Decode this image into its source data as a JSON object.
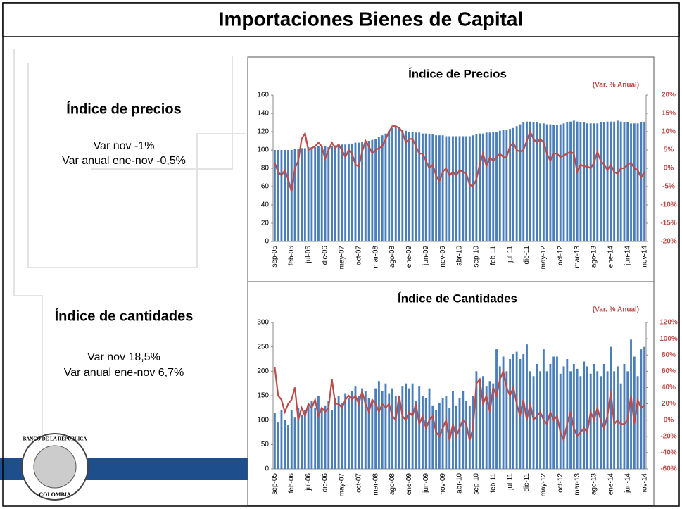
{
  "header": {
    "title": "Importaciones Bienes de Capital"
  },
  "sections": [
    {
      "heading": "Índice de precios",
      "lines": [
        "Var nov -1%",
        "Var anual ene-nov -0,5%"
      ]
    },
    {
      "heading": "Índice de cantidades",
      "lines": [
        "Var nov 18,5%",
        "Var anual ene-nov 6,7%"
      ]
    }
  ],
  "logo": {
    "top": "BANCO DE LA REPÚBLICA",
    "bottom": "COLOMBIA"
  },
  "chart_data": [
    {
      "type": "bar_line",
      "title": "Índice de Precios",
      "annotation": "(Var. % Anual)",
      "categories": [
        "sep-05",
        null,
        null,
        null,
        null,
        "feb-06",
        null,
        null,
        null,
        null,
        "jul-06",
        null,
        null,
        null,
        null,
        "dic-06",
        null,
        null,
        null,
        null,
        "may-07",
        null,
        null,
        null,
        null,
        "oct-07",
        null,
        null,
        null,
        null,
        "mar-08",
        null,
        null,
        null,
        null,
        "ago-08",
        null,
        null,
        null,
        null,
        "ene-09",
        null,
        null,
        null,
        null,
        "jun-09",
        null,
        null,
        null,
        null,
        "nov-09",
        null,
        null,
        null,
        null,
        "abr-10",
        null,
        null,
        null,
        null,
        "sep-10",
        null,
        null,
        null,
        null,
        "feb-11",
        null,
        null,
        null,
        null,
        "jul-11",
        null,
        null,
        null,
        null,
        "dic-11",
        null,
        null,
        null,
        null,
        "may-12",
        null,
        null,
        null,
        null,
        "oct-12",
        null,
        null,
        null,
        null,
        "mar-13",
        null,
        null,
        null,
        null,
        "ago-13",
        null,
        null,
        null,
        null,
        "ene-14",
        null,
        null,
        null,
        null,
        "jun-14",
        null,
        null,
        null,
        null,
        "nov-14"
      ],
      "series": [
        {
          "color": "#4a7ebb",
          "values": [
            100,
            100,
            100,
            100,
            100,
            100,
            101,
            101,
            102,
            102,
            103,
            103,
            103,
            104,
            104,
            104,
            103,
            104,
            105,
            105,
            106,
            106,
            107,
            107,
            108,
            108,
            109,
            110,
            110,
            111,
            112,
            114,
            116,
            118,
            121,
            124,
            125,
            124,
            122,
            121,
            120,
            120,
            119,
            119,
            118,
            118,
            117,
            117,
            116,
            116,
            116,
            115,
            115,
            115,
            115,
            115,
            115,
            115,
            115,
            116,
            117,
            118,
            118,
            119,
            119,
            120,
            120,
            121,
            122,
            122,
            123,
            124,
            126,
            128,
            130,
            131,
            131,
            130,
            130,
            129,
            129,
            128,
            128,
            127,
            127,
            128,
            129,
            130,
            131,
            132,
            131,
            130,
            130,
            129,
            129,
            129,
            129,
            130,
            130,
            131,
            131,
            131,
            132,
            131,
            130,
            130,
            129,
            129,
            129,
            130,
            130
          ]
        },
        {
          "color": "#be4b48",
          "axis": "y2",
          "values": [
            1.5,
            -1,
            -2,
            -0.5,
            -3,
            -6.5,
            0,
            2,
            8,
            9.5,
            5,
            5.5,
            6,
            7,
            6,
            2.5,
            5,
            7,
            5.5,
            6.5,
            5,
            3,
            5,
            4,
            1,
            0.5,
            4.5,
            7.5,
            6,
            4,
            5,
            5.5,
            6,
            8,
            10,
            11.5,
            11.5,
            11,
            10,
            7,
            8,
            8,
            6,
            4,
            4,
            2,
            0,
            1,
            -2,
            -3.5,
            -1,
            0,
            -2,
            -1,
            -2,
            -0.5,
            -1,
            -1.5,
            -4.5,
            -5,
            -3,
            1,
            4,
            0.5,
            3,
            2,
            3,
            4,
            3,
            3,
            6,
            7,
            5,
            4.5,
            5,
            7.5,
            10,
            8,
            7,
            8,
            7,
            4,
            2,
            4,
            4,
            3,
            3.5,
            4,
            4.5,
            4,
            -1,
            1,
            0.5,
            0.5,
            0,
            1.5,
            4.5,
            2,
            1,
            -0.5,
            1,
            -1,
            -1.5,
            0,
            0,
            1,
            1.5,
            0,
            -0.5,
            -2.5,
            -1
          ]
        }
      ],
      "ylim": [
        0,
        160
      ],
      "yticks": [
        0,
        20,
        40,
        60,
        80,
        100,
        120,
        140,
        160
      ],
      "y2lim": [
        -20,
        20
      ],
      "y2ticks": [
        {
          "value": -20,
          "label": "-20%"
        },
        {
          "value": -15,
          "label": "-15%"
        },
        {
          "value": -10,
          "label": "-10%"
        },
        {
          "value": -5,
          "label": "-5%"
        },
        {
          "value": 0,
          "label": "0%"
        },
        {
          "value": 5,
          "label": "5%"
        },
        {
          "value": 10,
          "label": "10%"
        },
        {
          "value": 15,
          "label": "15%"
        },
        {
          "value": 20,
          "label": "20%"
        }
      ]
    },
    {
      "type": "bar_line",
      "title": "Índice de Cantidades",
      "annotation": "(Var. % Anual)",
      "categories": [
        "sep-05",
        null,
        null,
        null,
        null,
        "feb-06",
        null,
        null,
        null,
        null,
        "jul-06",
        null,
        null,
        null,
        null,
        "dic-06",
        null,
        null,
        null,
        null,
        "may-07",
        null,
        null,
        null,
        null,
        "oct-07",
        null,
        null,
        null,
        null,
        "mar-08",
        null,
        null,
        null,
        null,
        "ago-08",
        null,
        null,
        null,
        null,
        "ene-09",
        null,
        null,
        null,
        null,
        "jun-09",
        null,
        null,
        null,
        null,
        "nov-09",
        null,
        null,
        null,
        null,
        "abr-10",
        null,
        null,
        null,
        null,
        "sep-10",
        null,
        null,
        null,
        null,
        "feb-11",
        null,
        null,
        null,
        null,
        "jul-11",
        null,
        null,
        null,
        null,
        "dic-11",
        null,
        null,
        null,
        null,
        "may-12",
        null,
        null,
        null,
        null,
        "oct-12",
        null,
        null,
        null,
        null,
        "mar-13",
        null,
        null,
        null,
        null,
        "ago-13",
        null,
        null,
        null,
        null,
        "ene-14",
        null,
        null,
        null,
        null,
        "jun-14",
        null,
        null,
        null,
        null,
        "nov-14"
      ],
      "series": [
        {
          "color": "#4a7ebb",
          "values": [
            115,
            95,
            120,
            100,
            90,
            120,
            105,
            125,
            110,
            120,
            130,
            140,
            125,
            150,
            120,
            130,
            140,
            120,
            145,
            150,
            135,
            155,
            145,
            160,
            170,
            150,
            165,
            160,
            145,
            140,
            165,
            180,
            160,
            175,
            155,
            165,
            150,
            140,
            170,
            175,
            165,
            175,
            140,
            170,
            150,
            145,
            165,
            130,
            120,
            135,
            145,
            150,
            125,
            160,
            130,
            145,
            160,
            140,
            130,
            150,
            200,
            185,
            190,
            170,
            180,
            175,
            245,
            210,
            230,
            200,
            225,
            235,
            240,
            225,
            235,
            255,
            200,
            190,
            215,
            200,
            245,
            200,
            215,
            230,
            230,
            195,
            210,
            225,
            200,
            215,
            205,
            190,
            220,
            210,
            195,
            215,
            200,
            190,
            215,
            200,
            250,
            200,
            210,
            175,
            215,
            200,
            265,
            230,
            190,
            245,
            250
          ]
        },
        {
          "color": "#be4b48",
          "axis": "y2",
          "values": [
            65,
            30,
            25,
            10,
            20,
            25,
            40,
            0,
            15,
            5,
            20,
            15,
            25,
            5,
            15,
            10,
            15,
            50,
            20,
            20,
            15,
            25,
            30,
            25,
            30,
            20,
            35,
            20,
            10,
            25,
            20,
            10,
            20,
            15,
            20,
            5,
            0,
            30,
            5,
            0,
            10,
            5,
            20,
            -5,
            5,
            -10,
            0,
            5,
            -15,
            -20,
            -10,
            0,
            -25,
            -5,
            -20,
            -10,
            0,
            -5,
            -25,
            -10,
            45,
            50,
            20,
            30,
            10,
            40,
            30,
            50,
            60,
            40,
            30,
            40,
            20,
            5,
            25,
            0,
            20,
            0,
            5,
            10,
            0,
            -5,
            10,
            0,
            5,
            -15,
            -25,
            -5,
            10,
            -10,
            -20,
            -15,
            -10,
            -15,
            10,
            0,
            15,
            0,
            -10,
            5,
            35,
            -5,
            0,
            -5,
            -5,
            0,
            30,
            -5,
            25,
            15,
            18.5
          ]
        }
      ],
      "ylim": [
        0,
        300
      ],
      "yticks": [
        0,
        50,
        100,
        150,
        200,
        250,
        300
      ],
      "y2lim": [
        -60,
        120
      ],
      "y2ticks": [
        {
          "value": -60,
          "label": "-60%"
        },
        {
          "value": -40,
          "label": "-40%"
        },
        {
          "value": -20,
          "label": "-20%"
        },
        {
          "value": 0,
          "label": "0%"
        },
        {
          "value": 20,
          "label": "20%"
        },
        {
          "value": 40,
          "label": "40%"
        },
        {
          "value": 60,
          "label": "60%"
        },
        {
          "value": 80,
          "label": "80%"
        },
        {
          "value": 100,
          "label": "100%"
        },
        {
          "value": 120,
          "label": "120%"
        }
      ]
    }
  ]
}
